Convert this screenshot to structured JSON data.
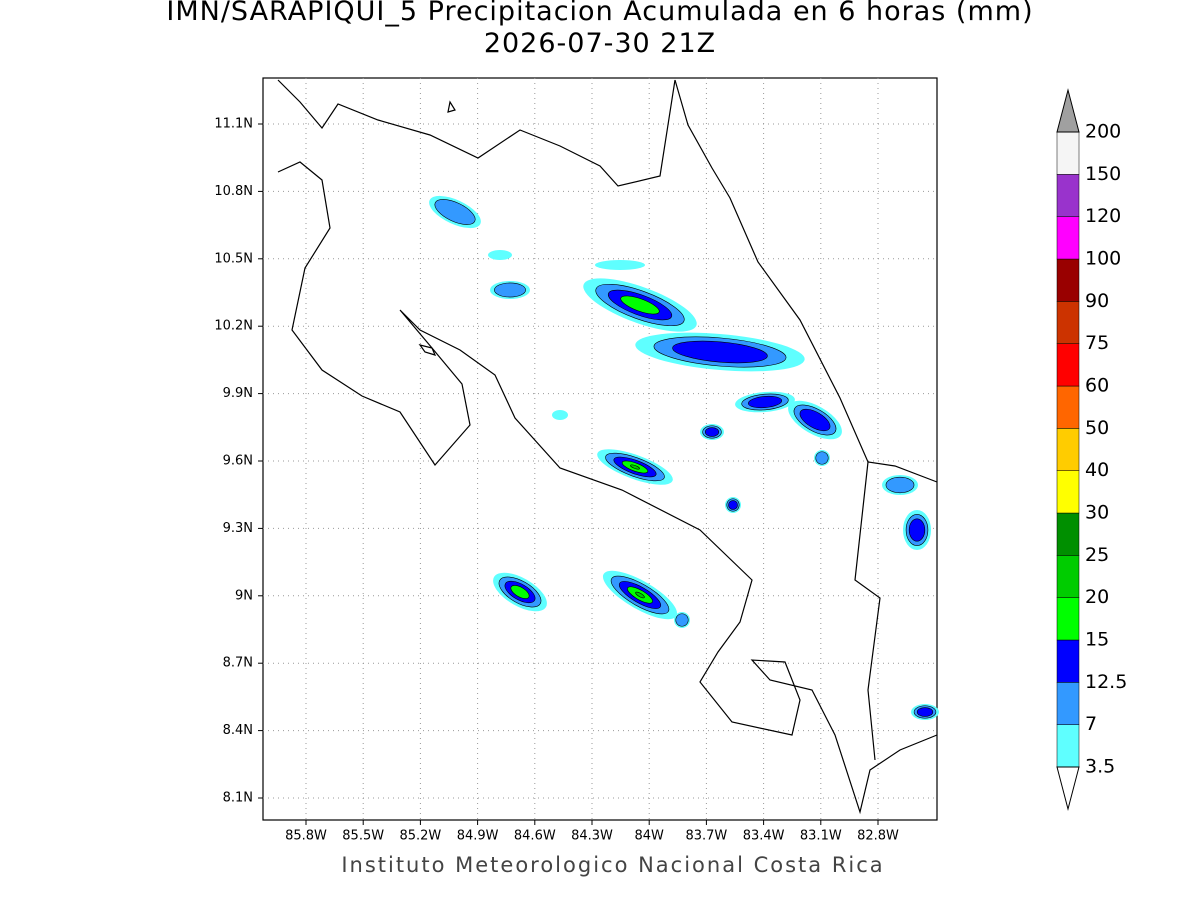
{
  "header": {
    "title": "IMN/SARAPIQUI_5 Precipitacion Acumulada en 6 horas (mm)",
    "subtitle": "2026-07-30 21Z"
  },
  "map": {
    "lat_labels": [
      "11.1N",
      "10.8N",
      "10.5N",
      "10.2N",
      "9.9N",
      "9.6N",
      "9.3N",
      "9N",
      "8.7N",
      "8.4N",
      "8.1N"
    ],
    "lon_labels": [
      "85.8W",
      "85.5W",
      "85.2W",
      "84.9W",
      "84.6W",
      "84.3W",
      "84W",
      "83.7W",
      "83.4W",
      "83.1W",
      "82.8W"
    ]
  },
  "legend": {
    "levels": [
      3.5,
      7,
      12.5,
      15,
      20,
      25,
      30,
      40,
      50,
      60,
      75,
      90,
      100,
      120,
      150,
      200
    ],
    "colors": [
      "#5fffff",
      "#3399ff",
      "#0000ff",
      "#00ff00",
      "#00cc00",
      "#008f00",
      "#ffff00",
      "#ffcc00",
      "#ff6600",
      "#ff0000",
      "#cc3300",
      "#990000",
      "#ff00ff",
      "#9933cc",
      "#f5f5f5"
    ],
    "under_color": "#ffffff",
    "over_color": "#a0a0a0"
  },
  "footer": "Instituto Meteorologico Nacional Costa Rica"
}
